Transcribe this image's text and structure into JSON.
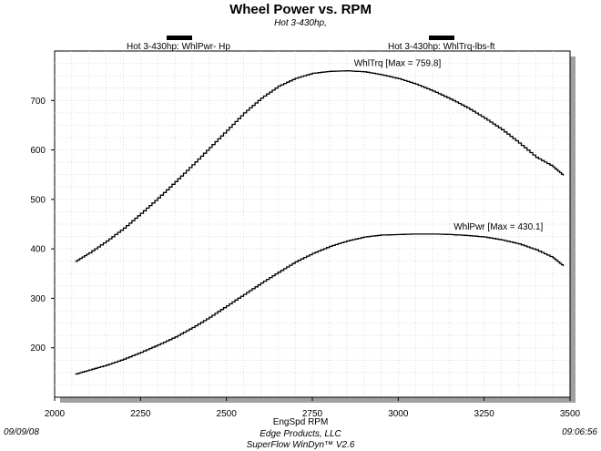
{
  "chart_data": {
    "type": "line",
    "title": "Wheel Power vs. RPM",
    "subtitle": "Hot 3-430hp,",
    "xlabel": "EngSpd  RPM",
    "ylabel": "",
    "xlim": [
      2000,
      3500
    ],
    "ylim": [
      100,
      800
    ],
    "x_ticks": [
      2000,
      2250,
      2500,
      2750,
      3000,
      3250,
      3500
    ],
    "y_ticks": [
      200,
      300,
      400,
      500,
      600,
      700
    ],
    "grid": true,
    "legend_position": "top",
    "series": [
      {
        "name": "Hot 3-430hp: WhlPwr-  Hp",
        "annotation": "WhlPwr [Max = 430.1]",
        "x": [
          2060,
          2100,
          2150,
          2200,
          2250,
          2300,
          2350,
          2400,
          2450,
          2500,
          2550,
          2600,
          2650,
          2700,
          2750,
          2800,
          2850,
          2900,
          2950,
          3000,
          3050,
          3100,
          3150,
          3200,
          3250,
          3300,
          3350,
          3400,
          3450,
          3480
        ],
        "values": [
          147,
          155,
          165,
          177,
          191,
          206,
          222,
          241,
          262,
          285,
          308,
          331,
          353,
          374,
          391,
          405,
          416,
          424,
          428,
          429,
          430,
          430,
          429,
          427,
          424,
          418,
          410,
          398,
          382,
          365
        ]
      },
      {
        "name": "Hot 3-430hp: WhlTrq-lbs-ft",
        "annotation": "WhlTrq [Max = 759.8]",
        "x": [
          2060,
          2100,
          2150,
          2200,
          2250,
          2300,
          2350,
          2400,
          2450,
          2500,
          2550,
          2600,
          2650,
          2700,
          2750,
          2800,
          2850,
          2900,
          2950,
          3000,
          3050,
          3100,
          3150,
          3200,
          3250,
          3300,
          3350,
          3400,
          3450,
          3480
        ],
        "values": [
          375,
          392,
          416,
          442,
          472,
          503,
          536,
          570,
          605,
          640,
          675,
          705,
          729,
          745,
          755,
          759,
          760,
          758,
          752,
          744,
          733,
          719,
          703,
          685,
          664,
          641,
          614,
          585,
          566,
          548
        ]
      }
    ],
    "line_color": "#000000",
    "grid_color": "#cfcfcf",
    "frame_shadow_color": "#a0a0a0"
  },
  "footer": {
    "date": "09/09/08",
    "company": "Edge Products, LLC",
    "software": "SuperFlow WinDyn™ V2.6",
    "time": "09:06:56"
  }
}
